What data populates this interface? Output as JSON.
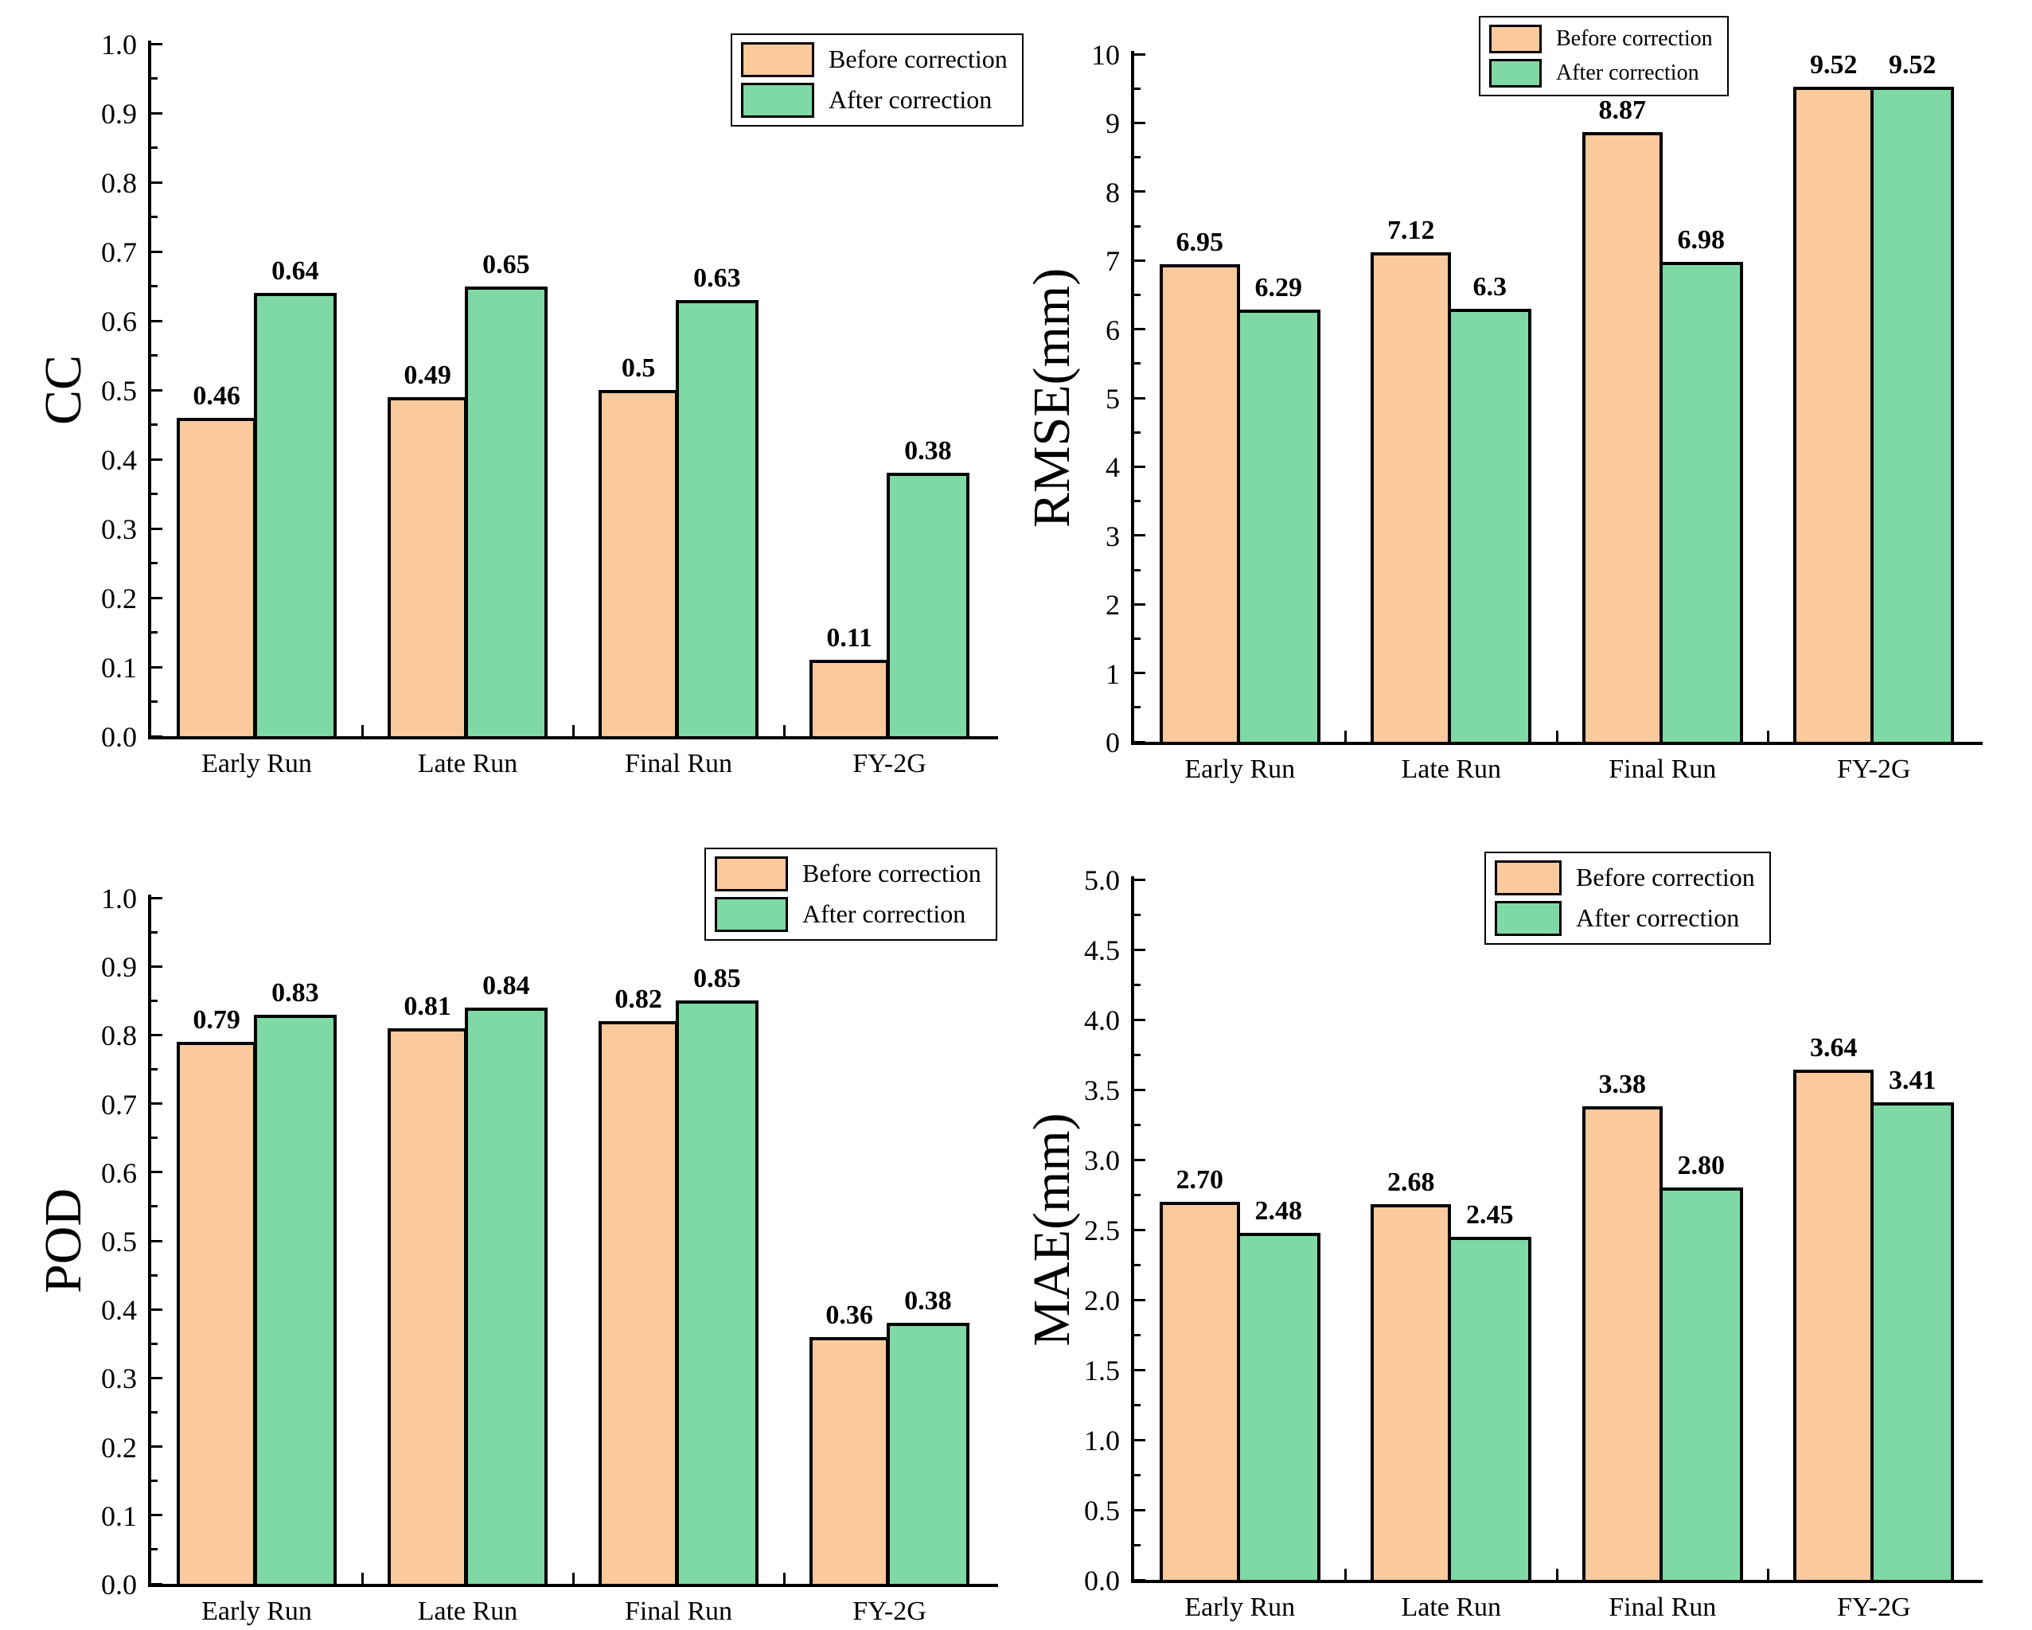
{
  "figure": {
    "background": "#ffffff",
    "description_labels": {
      "before": "Before correction",
      "after": "After correction"
    }
  },
  "colors": {
    "before_fill": "#FAC99C",
    "after_fill": "#7FD9A4",
    "bar_edge": "#000000",
    "axis": "#000000",
    "text": "#000000",
    "legend_border": "#000000",
    "legend_background": "#ffffff"
  },
  "legend": {
    "items": [
      {
        "label": "Before correction",
        "color": "#FAC99C"
      },
      {
        "label": "After correction",
        "color": "#7FD9A4"
      }
    ]
  },
  "chart_data": [
    {
      "id": "cc",
      "type": "bar",
      "title": "",
      "xlabel": "",
      "ylabel": "CC",
      "categories": [
        "Early Run",
        "Late Run",
        "Final Run",
        "FY-2G"
      ],
      "series": [
        {
          "name": "Before correction",
          "values": [
            0.46,
            0.49,
            0.5,
            0.11
          ],
          "labels": [
            "0.46",
            "0.49",
            "0.5",
            "0.11"
          ]
        },
        {
          "name": "After correction",
          "values": [
            0.64,
            0.65,
            0.63,
            0.38
          ],
          "labels": [
            "0.64",
            "0.65",
            "0.63",
            "0.38"
          ]
        }
      ],
      "ylim": [
        0.0,
        1.0
      ],
      "ytick_step": 0.1,
      "ytick_labels": [
        "0.0",
        "0.1",
        "0.2",
        "0.3",
        "0.4",
        "0.5",
        "0.6",
        "0.7",
        "0.8",
        "0.9",
        "1.0"
      ],
      "minor_ticks": true,
      "grid": false,
      "legend_position": "top-right"
    },
    {
      "id": "rmse",
      "type": "bar",
      "title": "",
      "xlabel": "",
      "ylabel": "RMSE(mm)",
      "categories": [
        "Early Run",
        "Late Run",
        "Final Run",
        "FY-2G"
      ],
      "series": [
        {
          "name": "Before correction",
          "values": [
            6.95,
            7.12,
            8.87,
            9.52
          ],
          "labels": [
            "6.95",
            "7.12",
            "8.87",
            "9.52"
          ]
        },
        {
          "name": "After correction",
          "values": [
            6.29,
            6.3,
            6.98,
            9.52
          ],
          "labels": [
            "6.29",
            "6.3",
            "6.98",
            "9.52"
          ]
        }
      ],
      "ylim": [
        0,
        10
      ],
      "ytick_step": 1,
      "ytick_labels": [
        "0",
        "1",
        "2",
        "3",
        "4",
        "5",
        "6",
        "7",
        "8",
        "9",
        "10"
      ],
      "minor_ticks": true,
      "grid": false,
      "legend_position": "top-right"
    },
    {
      "id": "pod",
      "type": "bar",
      "title": "",
      "xlabel": "",
      "ylabel": "POD",
      "categories": [
        "Early Run",
        "Late Run",
        "Final Run",
        "FY-2G"
      ],
      "series": [
        {
          "name": "Before correction",
          "values": [
            0.79,
            0.81,
            0.82,
            0.36
          ],
          "labels": [
            "0.79",
            "0.81",
            "0.82",
            "0.36"
          ]
        },
        {
          "name": "After correction",
          "values": [
            0.83,
            0.84,
            0.85,
            0.38
          ],
          "labels": [
            "0.83",
            "0.84",
            "0.85",
            "0.38"
          ]
        }
      ],
      "ylim": [
        0.0,
        1.0
      ],
      "ytick_step": 0.1,
      "ytick_labels": [
        "0.0",
        "0.1",
        "0.2",
        "0.3",
        "0.4",
        "0.5",
        "0.6",
        "0.7",
        "0.8",
        "0.9",
        "1.0"
      ],
      "minor_ticks": true,
      "grid": false,
      "legend_position": "top-right"
    },
    {
      "id": "mae",
      "type": "bar",
      "title": "",
      "xlabel": "",
      "ylabel": "MAE(mm)",
      "categories": [
        "Early Run",
        "Late Run",
        "Final Run",
        "FY-2G"
      ],
      "series": [
        {
          "name": "Before correction",
          "values": [
            2.7,
            2.68,
            3.38,
            3.64
          ],
          "labels": [
            "2.70",
            "2.68",
            "3.38",
            "3.64"
          ]
        },
        {
          "name": "After correction",
          "values": [
            2.48,
            2.45,
            2.8,
            3.41
          ],
          "labels": [
            "2.48",
            "2.45",
            "2.80",
            "3.41"
          ]
        }
      ],
      "ylim": [
        0.0,
        5.0
      ],
      "ytick_step": 0.5,
      "ytick_labels": [
        "0.0",
        "0.5",
        "1.0",
        "1.5",
        "2.0",
        "2.5",
        "3.0",
        "3.5",
        "4.0",
        "4.5",
        "5.0"
      ],
      "minor_ticks": true,
      "grid": false,
      "legend_position": "top-right"
    }
  ]
}
